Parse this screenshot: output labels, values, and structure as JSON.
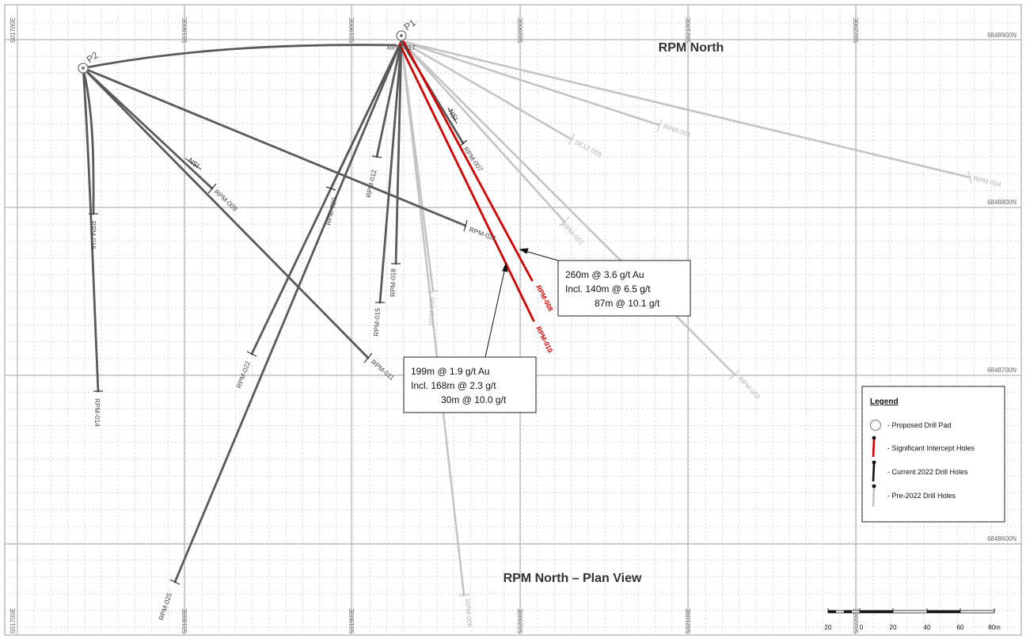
{
  "title": "RPM North",
  "subtitle": "RPM North – Plan View",
  "colors": {
    "current": "#555555",
    "pre2022": "#c4c4c4",
    "significant": "#d40000"
  },
  "easting_labels": [
    "501700E",
    "501800E",
    "501900E",
    "502000E",
    "502100E",
    "502200E"
  ],
  "northing_labels": [
    "6848900N",
    "6848800N",
    "6848700N",
    "6848600N"
  ],
  "pads": [
    {
      "id": "P1",
      "label": "P1"
    },
    {
      "id": "P2",
      "label": "P2"
    }
  ],
  "holes": [
    {
      "label": "RPM-017",
      "pad": "P1",
      "status": "current"
    },
    {
      "label": "RPM-016",
      "pad": "P2",
      "status": "current"
    },
    {
      "label": "RPM-014",
      "pad": "P2",
      "status": "current"
    },
    {
      "label": "RPM-009",
      "pad": "P2",
      "status": "current"
    },
    {
      "label": "RPM-011",
      "pad": "P2",
      "status": "current"
    },
    {
      "label": "RPM-021",
      "pad": "P2",
      "status": "current"
    },
    {
      "label": "RPM-007",
      "pad": "P1",
      "status": "current"
    },
    {
      "label": "RPM-012",
      "pad": "P1",
      "status": "current"
    },
    {
      "label": "RPM-015",
      "pad": "P1",
      "status": "current"
    },
    {
      "label": "RPM-018",
      "pad": "P1",
      "status": "current"
    },
    {
      "label": "RPM-020",
      "pad": "P1",
      "status": "current"
    },
    {
      "label": "RPM-022",
      "pad": "P1",
      "status": "current"
    },
    {
      "label": "RPM-025",
      "pad": "P1",
      "status": "current"
    },
    {
      "label": "RPM-008",
      "pad": "P1",
      "status": "significant"
    },
    {
      "label": "RPM-010",
      "pad": "P1",
      "status": "significant"
    },
    {
      "label": "RPM-001",
      "pad": "P1",
      "status": "pre-2022"
    },
    {
      "label": "RPM-002",
      "pad": "P1",
      "status": "pre-2022"
    },
    {
      "label": "RPM-003",
      "pad": "P1",
      "status": "pre-2022"
    },
    {
      "label": "RPM-004",
      "pad": "P1",
      "status": "pre-2022"
    },
    {
      "label": "RPM-005",
      "pad": "P1",
      "status": "pre-2022"
    },
    {
      "label": "RPM-006",
      "pad": "P1",
      "status": "pre-2022"
    },
    {
      "label": "SE12-008",
      "pad": "P1",
      "status": "pre-2022"
    }
  ],
  "nsi_label": "NSI",
  "callouts": [
    {
      "hole": "RPM-008",
      "lines": [
        "260m @ 3.6 g/t Au",
        "Incl. 140m @ 6.5 g/t",
        "87m @ 10.1 g/t"
      ]
    },
    {
      "hole": "RPM-010",
      "lines": [
        "199m @ 1.9 g/t Au",
        "Incl. 168m @ 2.3 g/t",
        "30m @ 10.0 g/t"
      ]
    }
  ],
  "legend": {
    "title": "Legend",
    "items": [
      {
        "symbol": "pad",
        "text": "-  Proposed Drill Pad"
      },
      {
        "symbol": "significant",
        "text": "-  Significant Intercept Holes"
      },
      {
        "symbol": "current",
        "text": "-  Current 2022 Drill Holes"
      },
      {
        "symbol": "pre2022",
        "text": "-  Pre-2022 Drill Holes"
      }
    ]
  },
  "scale_bar": {
    "labels": [
      "20",
      "0",
      "20",
      "40",
      "60",
      "80m"
    ]
  }
}
